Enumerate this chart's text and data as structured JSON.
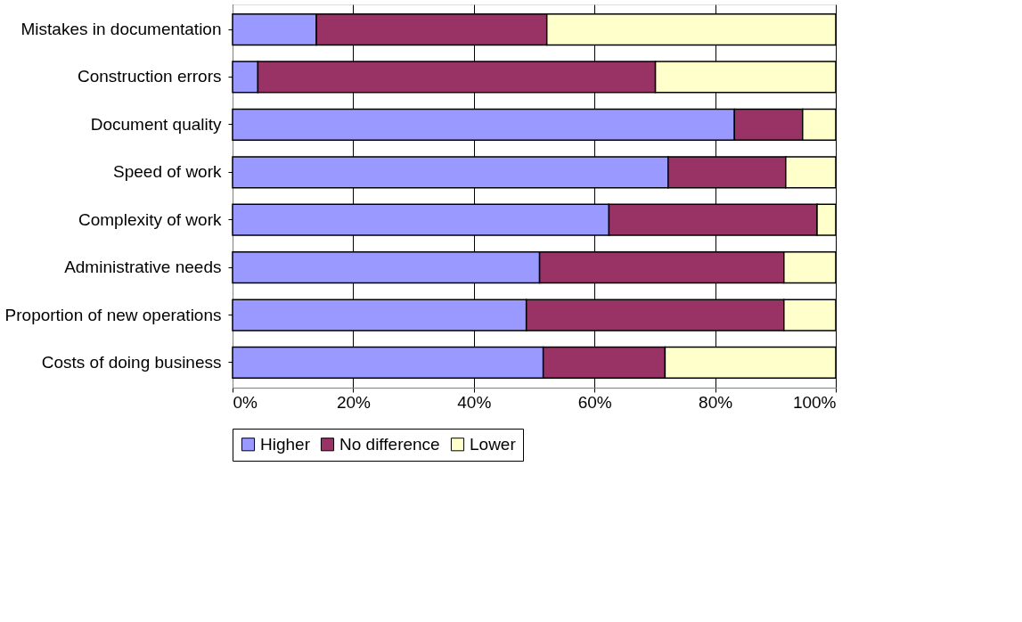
{
  "chart_data": {
    "type": "bar",
    "orientation": "horizontal",
    "stacked": true,
    "categories": [
      "Mistakes in documentation",
      "Construction errors",
      "Document quality",
      "Speed of work",
      "Complexity of work",
      "Administrative needs",
      "Proportion of new operations",
      "Costs of doing business"
    ],
    "series": [
      {
        "name": "Higher",
        "color": "#9999ff",
        "values": [
          13.9,
          4.2,
          83.2,
          72.2,
          62.4,
          50.9,
          48.7,
          51.5
        ]
      },
      {
        "name": "No difference",
        "color": "#993366",
        "values": [
          38.2,
          65.9,
          11.3,
          19.5,
          34.5,
          40.5,
          42.7,
          20.2
        ]
      },
      {
        "name": "Lower",
        "color": "#ffffcc",
        "values": [
          47.9,
          29.9,
          5.5,
          8.3,
          3.1,
          8.6,
          8.6,
          28.3
        ]
      }
    ],
    "xlim": [
      0,
      100
    ],
    "xticks": [
      {
        "value": 0,
        "label": "0%"
      },
      {
        "value": 20,
        "label": "20%"
      },
      {
        "value": 40,
        "label": "40%"
      },
      {
        "value": 60,
        "label": "60%"
      },
      {
        "value": 80,
        "label": "80%"
      },
      {
        "value": 100,
        "label": "100%"
      }
    ],
    "grid": "x",
    "legend": "bottom"
  }
}
